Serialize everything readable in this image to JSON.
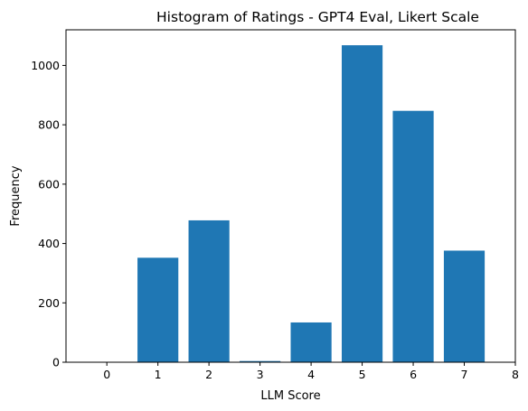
{
  "chart_data": {
    "type": "bar",
    "title": "Histogram of Ratings - GPT4 Eval, Likert Scale",
    "xlabel": "LLM Score",
    "ylabel": "Frequency",
    "categories": [
      0,
      1,
      2,
      3,
      4,
      5,
      6,
      7
    ],
    "values": [
      0,
      352,
      478,
      4,
      134,
      1068,
      847,
      376
    ],
    "xlim": [
      -0.8,
      8
    ],
    "ylim": [
      0,
      1120
    ],
    "xticks": [
      0,
      1,
      2,
      3,
      4,
      5,
      6,
      7,
      8
    ],
    "yticks": [
      0,
      200,
      400,
      600,
      800,
      1000
    ],
    "bar_width": 0.8,
    "bar_color": "#1f77b4",
    "grid": false,
    "legend": "none"
  }
}
